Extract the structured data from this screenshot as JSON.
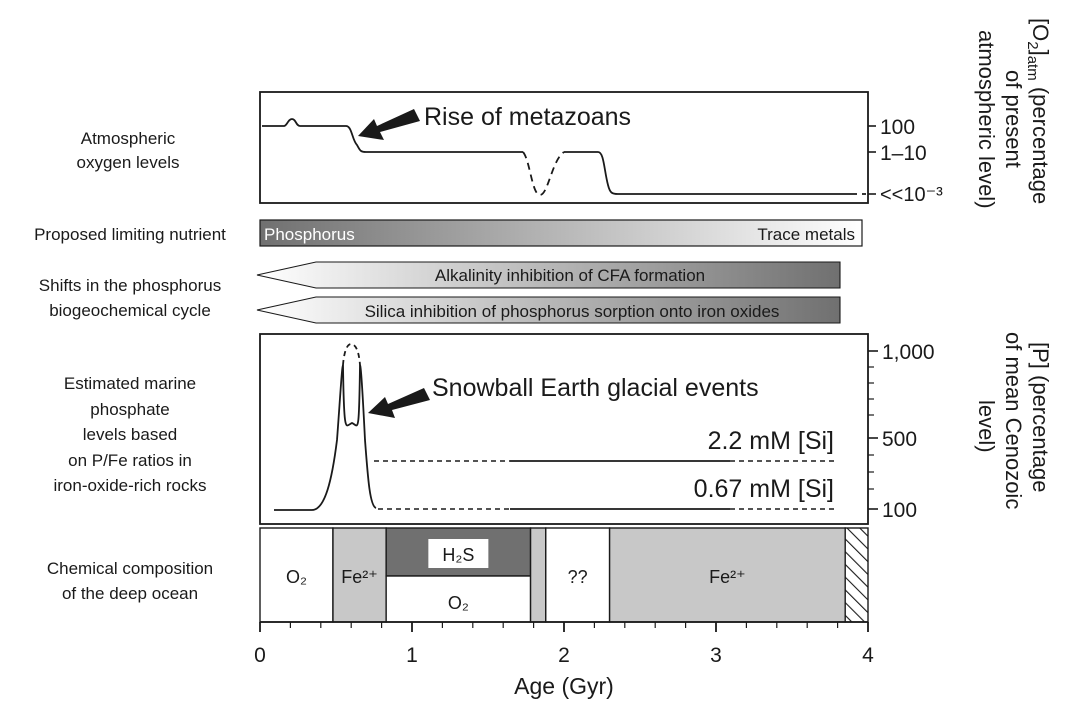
{
  "row_labels": {
    "oxygen": [
      "Atmospheric",
      "oxygen levels"
    ],
    "nutrient": [
      "Proposed limiting nutrient"
    ],
    "cycle": [
      "Shifts in the phosphorus",
      "biogeochemical cycle"
    ],
    "phosphate": [
      "Estimated marine",
      "phosphate",
      "levels based",
      "on P/Fe ratios in",
      "iron-oxide-rich rocks"
    ],
    "ocean": [
      "Chemical composition",
      "of the deep ocean"
    ]
  },
  "nutrient_bar": {
    "left": "Phosphorus",
    "right": "Trace metals",
    "color_left": "#707070",
    "color_right": "#ffffff"
  },
  "cycle_bars": [
    {
      "label": "Alkalinity inhibition of CFA formation",
      "start_gyr": 0.4,
      "end_gyr": 3.83
    },
    {
      "label": "Silica inhibition of phosphorus sorption onto iron oxides",
      "start_gyr": 0.4,
      "end_gyr": 3.83
    }
  ],
  "annotations": {
    "oxygen": "Rise of metazoans",
    "phosphate": "Snowball Earth glacial events",
    "si_high": "2.2 mM [Si]",
    "si_low": "0.67 mM [Si]"
  },
  "right_axis_oxygen": {
    "label": [
      "[O₂]ₐₜₘ (percentage",
      "of present",
      "atmospheric level)"
    ],
    "label_main": "[O",
    "label_sub": "2",
    "label_sub2": "]",
    "label_sub3": "atm",
    "label_tail": " (percentage",
    "label_line2": "of present",
    "label_line3": "atmospheric level)",
    "ticks": [
      "100",
      "1–10",
      "<<10⁻³"
    ]
  },
  "right_axis_phosphate": {
    "label": [
      "[P] (percentage",
      "of mean Cenozoic",
      "level)"
    ],
    "ticks": [
      "1,000",
      "500",
      "100"
    ]
  },
  "ocean_cells": [
    {
      "start_gyr": 0.0,
      "end_gyr": 0.48,
      "label": "O₂",
      "fill": "#ffffff"
    },
    {
      "start_gyr": 0.48,
      "end_gyr": 0.83,
      "label": "Fe²⁺",
      "fill": "#c8c8c8"
    },
    {
      "start_gyr": 0.83,
      "end_gyr": 1.78,
      "label_top": "H₂S",
      "label_bottom": "O₂",
      "fill_top": "#707070",
      "fill_bottom": "#ffffff"
    },
    {
      "start_gyr": 1.78,
      "end_gyr": 1.88,
      "label": "",
      "fill": "#c8c8c8"
    },
    {
      "start_gyr": 1.88,
      "end_gyr": 2.3,
      "label": "??",
      "fill": "#ffffff"
    },
    {
      "start_gyr": 2.3,
      "end_gyr": 3.85,
      "label": "Fe²⁺",
      "fill": "#c8c8c8"
    },
    {
      "start_gyr": 3.85,
      "end_gyr": 4.0,
      "label": "",
      "fill": "hatch"
    }
  ],
  "x_axis": {
    "label": "Age (Gyr)",
    "ticks": [
      "0",
      "1",
      "2",
      "3",
      "4"
    ]
  },
  "colors": {
    "ink": "#1a1a1a",
    "dark_gray": "#707070",
    "light_gray": "#c8c8c8"
  }
}
